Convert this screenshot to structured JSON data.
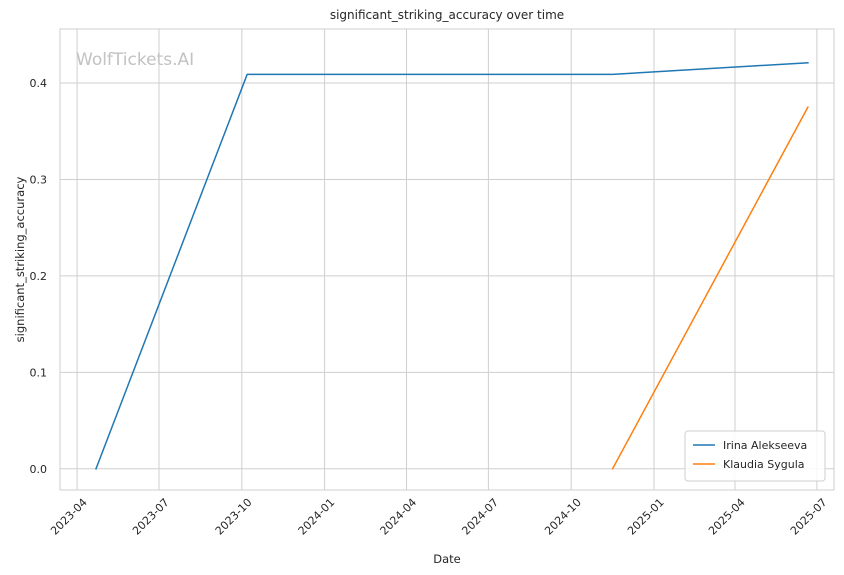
{
  "watermark": "WolfTickets.AI",
  "colors": {
    "background": "#ffffff",
    "grid": "#cfcfcf",
    "spine": "#cfcfcf",
    "text": "#262626"
  },
  "chart_data": {
    "type": "line",
    "title": "significant_striking_accuracy over time",
    "xlabel": "Date",
    "ylabel": "significant_striking_accuracy",
    "x_axis_type": "date",
    "xlim": [
      "2023-03-13",
      "2025-07-20"
    ],
    "ylim": [
      -0.022,
      0.456
    ],
    "x_ticks": [
      "2023-04",
      "2023-07",
      "2023-10",
      "2024-01",
      "2024-04",
      "2024-07",
      "2024-10",
      "2025-01",
      "2025-04",
      "2025-07"
    ],
    "y_ticks": [
      "0.0",
      "0.1",
      "0.2",
      "0.3",
      "0.4"
    ],
    "grid": true,
    "legend_position": "lower-right",
    "series": [
      {
        "name": "Irina Alekseeva",
        "color": "#1f77b4",
        "points": [
          {
            "x": "2023-04-22",
            "y": 0.0
          },
          {
            "x": "2023-10-07",
            "y": 0.409
          },
          {
            "x": "2024-11-16",
            "y": 0.409
          },
          {
            "x": "2025-06-21",
            "y": 0.421
          }
        ]
      },
      {
        "name": "Klaudia Sygula",
        "color": "#ff7f0e",
        "points": [
          {
            "x": "2024-11-16",
            "y": 0.0
          },
          {
            "x": "2025-06-21",
            "y": 0.375
          }
        ]
      }
    ]
  }
}
